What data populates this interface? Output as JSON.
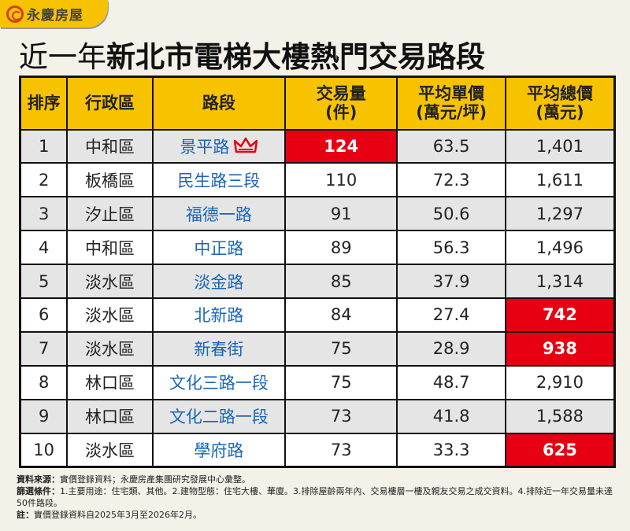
{
  "brand": "永慶房屋",
  "title": {
    "light": "近一年",
    "bold": "新北市電梯大樓熱門交易路段"
  },
  "colors": {
    "header": "#f7c200",
    "highlight": "#e60012",
    "road": "#1a66b8"
  },
  "headers": [
    "排序",
    "行政區",
    "路段",
    "交易量\n(件)",
    "平均單價\n(萬元/坪)",
    "平均總價\n(萬元)"
  ],
  "rows": [
    {
      "rank": "1",
      "district": "中和區",
      "road": "景平路",
      "volume": "124",
      "unit_price": "63.5",
      "total_price": "1,401",
      "icon": "crown-icon",
      "hl_volume": true
    },
    {
      "rank": "2",
      "district": "板橋區",
      "road": "民生路三段",
      "volume": "110",
      "unit_price": "72.3",
      "total_price": "1,611"
    },
    {
      "rank": "3",
      "district": "汐止區",
      "road": "福德一路",
      "volume": "91",
      "unit_price": "50.6",
      "total_price": "1,297"
    },
    {
      "rank": "4",
      "district": "中和區",
      "road": "中正路",
      "volume": "89",
      "unit_price": "56.3",
      "total_price": "1,496"
    },
    {
      "rank": "5",
      "district": "淡水區",
      "road": "淡金路",
      "volume": "85",
      "unit_price": "37.9",
      "total_price": "1,314"
    },
    {
      "rank": "6",
      "district": "淡水區",
      "road": "北新路",
      "volume": "84",
      "unit_price": "27.4",
      "total_price": "742",
      "hl_total": true
    },
    {
      "rank": "7",
      "district": "淡水區",
      "road": "新春街",
      "volume": "75",
      "unit_price": "28.9",
      "total_price": "938",
      "hl_total": true
    },
    {
      "rank": "8",
      "district": "林口區",
      "road": "文化三路一段",
      "volume": "75",
      "unit_price": "48.7",
      "total_price": "2,910"
    },
    {
      "rank": "9",
      "district": "林口區",
      "road": "文化二路一段",
      "volume": "73",
      "unit_price": "41.8",
      "total_price": "1,588"
    },
    {
      "rank": "10",
      "district": "淡水區",
      "road": "學府路",
      "volume": "73",
      "unit_price": "33.3",
      "total_price": "625",
      "hl_total": true
    }
  ],
  "notes": {
    "source_label": "資料來源：",
    "source": "實價登錄資料；永慶房產集團研究發展中心彙整。",
    "filter_label": "篩選條件：",
    "filter": "1.主要用途：住宅類、其他。2.建物型態：住宅大樓、華廈。3.排除屋齡兩年內、交易樓層一樓及親友交易之成交資料。4.排除近一年交易量未達50件路段。",
    "note_label": "註：",
    "note": "實價登錄資料自2025年3月至2026年2月。"
  }
}
